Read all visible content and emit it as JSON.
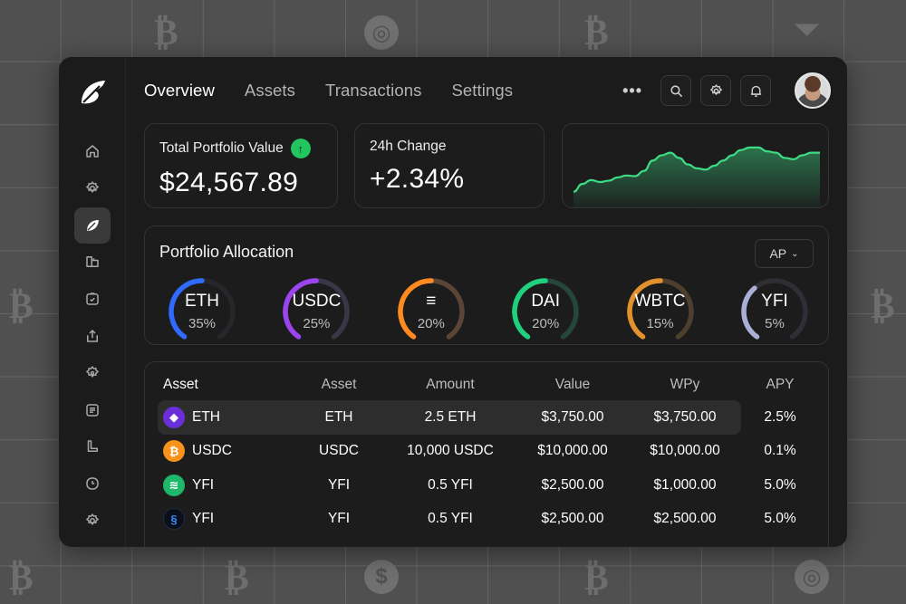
{
  "background": {
    "pattern": "grid",
    "icons": [
      "bitcoin-icon",
      "coin-icon",
      "dollar-coin-icon",
      "funnel-icon"
    ]
  },
  "brand": {
    "logo": "leaf-logo-icon"
  },
  "header": {
    "tabs": [
      {
        "label": "Overview",
        "active": true
      },
      {
        "label": "Assets",
        "active": false
      },
      {
        "label": "Transactions",
        "active": false
      },
      {
        "label": "Settings",
        "active": false
      }
    ],
    "more_label": "•••",
    "actions": [
      "search-icon",
      "gear-icon",
      "bell-icon"
    ],
    "avatar": "user-avatar"
  },
  "sidebar": {
    "items": [
      {
        "icon": "home-icon",
        "active": false
      },
      {
        "icon": "gear-icon",
        "active": false
      },
      {
        "icon": "leaf-icon",
        "active": true
      },
      {
        "icon": "wallet-icon",
        "active": false
      },
      {
        "icon": "clipboard-check-icon",
        "active": false
      },
      {
        "icon": "upload-icon",
        "active": false
      },
      {
        "icon": "settings-icon",
        "active": false
      },
      {
        "icon": "notes-icon",
        "active": false
      },
      {
        "icon": "chart-corner-icon",
        "active": false
      },
      {
        "icon": "clock-icon",
        "active": false
      },
      {
        "icon": "cog-icon",
        "active": false
      }
    ]
  },
  "stats": {
    "total": {
      "label": "Total Portfolio Value",
      "value": "$24,567.89",
      "trend_icon": "arrow-up-icon"
    },
    "change": {
      "label": "24h Change",
      "value": "+2.34%"
    }
  },
  "sparkline": {
    "color": "#3ddc84",
    "points": [
      10,
      22,
      28,
      25,
      27,
      32,
      35,
      34,
      42,
      58,
      66,
      70,
      62,
      52,
      46,
      44,
      50,
      58,
      66,
      74,
      78,
      78,
      72,
      70,
      62,
      60,
      66,
      70,
      70
    ]
  },
  "allocation": {
    "title": "Portfolio Allocation",
    "select_label": "AP",
    "items": [
      {
        "name": "ETH",
        "pct": "35%",
        "value": 35,
        "color": "#2f6bff",
        "track": "#26262b"
      },
      {
        "name": "USDC",
        "pct": "25%",
        "value": 25,
        "color": "#9b45f0",
        "track": "#3a3547"
      },
      {
        "name": "≡",
        "pct": "20%",
        "value": 20,
        "color": "#ff8a1f",
        "track": "#5a4536"
      },
      {
        "name": "DAI",
        "pct": "20%",
        "value": 20,
        "color": "#1fd07c",
        "track": "#24473a"
      },
      {
        "name": "WBTC",
        "pct": "15%",
        "value": 15,
        "color": "#e2912c",
        "track": "#4d3e2e"
      },
      {
        "name": "YFI",
        "pct": "5%",
        "value": 5,
        "color": "#a8b0d6",
        "track": "#2e2e34"
      }
    ]
  },
  "table": {
    "headers": [
      "Asset",
      "Asset",
      "Amount",
      "Value",
      "WPy",
      "APY"
    ],
    "rows": [
      {
        "icon": "ethereum-icon",
        "icon_bg": "#6b2fd8",
        "icon_glyph": "◆",
        "name": "ETH",
        "asset": "ETH",
        "amount": "2.5 ETH",
        "value": "$3,750.00",
        "wpy": "$3,750.00",
        "apy": "2.5%",
        "highlighted": true
      },
      {
        "icon": "bitcoin-coin-icon",
        "icon_bg": "#f7931a",
        "icon_glyph": "₿",
        "name": "USDC",
        "asset": "USDC",
        "amount": "10,000 USDC",
        "value": "$10,000.00",
        "wpy": "$10,000.00",
        "apy": "0.1%",
        "highlighted": false
      },
      {
        "icon": "green-swirl-icon",
        "icon_bg": "#1fb86a",
        "icon_glyph": "≋",
        "name": "YFI",
        "asset": "YFI",
        "amount": "0.5 YFI",
        "value": "$2,500.00",
        "wpy": "$1,000.00",
        "apy": "5.0%",
        "highlighted": false
      },
      {
        "icon": "blue-swirl-icon",
        "icon_bg": "#0a0f1a",
        "icon_glyph": "§",
        "name": "YFI",
        "asset": "YFI",
        "amount": "0.5 YFI",
        "value": "$2,500.00",
        "wpy": "$2,500.00",
        "apy": "5.0%",
        "highlighted": false
      }
    ]
  }
}
